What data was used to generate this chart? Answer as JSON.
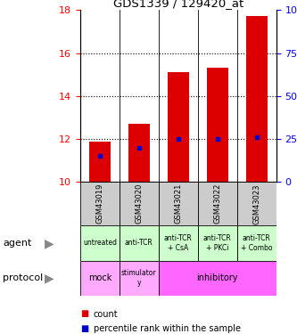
{
  "title": "GDS1339 / 129420_at",
  "samples": [
    "GSM43019",
    "GSM43020",
    "GSM43021",
    "GSM43022",
    "GSM43023"
  ],
  "bar_bottoms": [
    10,
    10,
    10,
    10,
    10
  ],
  "bar_tops": [
    11.9,
    12.7,
    15.1,
    15.3,
    17.7
  ],
  "percentile_values": [
    11.2,
    11.6,
    12.0,
    12.0,
    12.1
  ],
  "ylim_left": [
    10,
    18
  ],
  "ylim_right": [
    0,
    100
  ],
  "right_ticks": [
    0,
    25,
    50,
    75,
    100
  ],
  "right_tick_labels": [
    "0",
    "25",
    "50",
    "75",
    "100%"
  ],
  "left_ticks": [
    10,
    12,
    14,
    16,
    18
  ],
  "bar_color": "#dd0000",
  "percentile_color": "#0000cc",
  "agent_labels": [
    "untreated",
    "anti-TCR",
    "anti-TCR\n+ CsA",
    "anti-TCR\n+ PKCi",
    "anti-TCR\n+ Combo"
  ],
  "agent_bg": "#ccffcc",
  "sample_bg": "#cccccc",
  "protocol_bg_mock": "#ffaaff",
  "protocol_bg_stim": "#ffaaff",
  "protocol_bg_inhib": "#ff66ff",
  "legend_count_color": "#dd0000",
  "legend_pct_color": "#0000cc"
}
